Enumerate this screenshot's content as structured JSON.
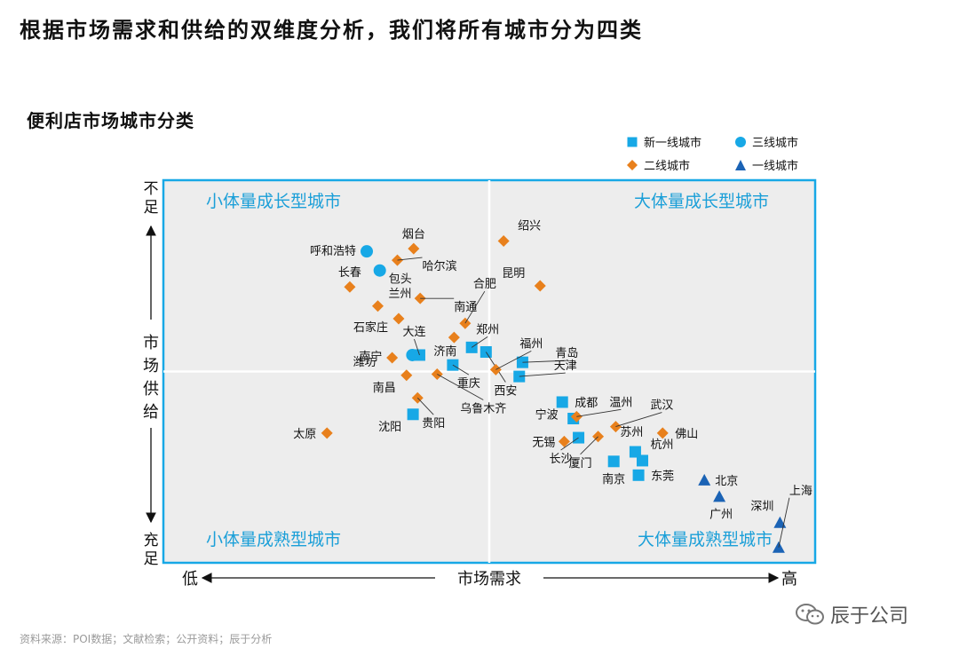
{
  "headline": "根据市场需求和供给的双维度分析，我们将所有城市分为四类",
  "subtitle": "便利店市场城市分类",
  "footnote": "资料来源：POI数据；文献检索；公开资料；辰于分析",
  "brand": {
    "name": "辰于公司",
    "icon": "wechat-icon"
  },
  "colors": {
    "blue": "#17a8e6",
    "orange": "#e8801c",
    "navy": "#1b63b5",
    "quadrant_bg": "#ededed",
    "quadrant_title": "#1b9fd8"
  },
  "legend": [
    {
      "label": "新一线城市",
      "shape": "square",
      "color": "#17a8e6"
    },
    {
      "label": "三线城市",
      "shape": "circle",
      "color": "#17a8e6"
    },
    {
      "label": "二线城市",
      "shape": "diamond",
      "color": "#e8801c"
    },
    {
      "label": "一线城市",
      "shape": "triangle",
      "color": "#1b63b5"
    }
  ],
  "chart_data": {
    "type": "scatter",
    "xlabel": "市场需求",
    "ylabel": "市场供给",
    "x_low_label": "低",
    "x_high_label": "高",
    "y_top_label": "不足",
    "y_bottom_label": "充足",
    "xlim": [
      0,
      100
    ],
    "ylim": [
      0,
      100
    ],
    "grid": false,
    "legend_position": "top-right",
    "quadrants": [
      {
        "label": "小体量成长型城市",
        "position": "top-left"
      },
      {
        "label": "大体量成长型城市",
        "position": "top-right"
      },
      {
        "label": "小体量成熟型城市",
        "position": "bottom-left"
      },
      {
        "label": "大体量成熟型城市",
        "position": "bottom-right"
      }
    ],
    "series": [
      {
        "name": "新一线城市",
        "shape": "square",
        "color": "#17a8e6",
        "points": [
          {
            "label": "大连",
            "x": 39.3,
            "y": 54.3
          },
          {
            "label": "重庆",
            "x": 44.4,
            "y": 51.7
          },
          {
            "label": "郑州",
            "x": 47.3,
            "y": 56.3
          },
          {
            "label": "青岛",
            "x": 55.1,
            "y": 52.4
          },
          {
            "label": "天津",
            "x": 54.6,
            "y": 48.7
          },
          {
            "label": "西安",
            "x": 49.5,
            "y": 55.1
          },
          {
            "label": "沈阳",
            "x": 38.3,
            "y": 38.8
          },
          {
            "label": "成都",
            "x": 61.2,
            "y": 42.0
          },
          {
            "label": "宁波",
            "x": 62.9,
            "y": 37.7
          },
          {
            "label": "长沙",
            "x": 63.7,
            "y": 32.7
          },
          {
            "label": "苏州",
            "x": 72.4,
            "y": 29.0
          },
          {
            "label": "杭州",
            "x": 73.5,
            "y": 26.7
          },
          {
            "label": "南京",
            "x": 69.1,
            "y": 26.5
          },
          {
            "label": "东莞",
            "x": 72.9,
            "y": 22.9
          }
        ]
      },
      {
        "name": "三线城市",
        "shape": "circle",
        "color": "#17a8e6",
        "points": [
          {
            "label": "呼和浩特",
            "x": 31.2,
            "y": 81.4
          },
          {
            "label": "包头",
            "x": 33.2,
            "y": 76.4
          },
          {
            "label": "南宁",
            "x": 38.2,
            "y": 54.3
          }
        ]
      },
      {
        "name": "二线城市",
        "shape": "diamond",
        "color": "#e8801c",
        "points": [
          {
            "label": "烟台",
            "x": 38.4,
            "y": 82.1
          },
          {
            "label": "哈尔滨",
            "x": 35.9,
            "y": 79.1
          },
          {
            "label": "绍兴",
            "x": 52.2,
            "y": 84.1
          },
          {
            "label": "长春",
            "x": 28.6,
            "y": 72.1
          },
          {
            "label": "兰州",
            "x": 32.9,
            "y": 67.1
          },
          {
            "label": "南通",
            "x": 39.4,
            "y": 69.1
          },
          {
            "label": "合肥",
            "x": 46.3,
            "y": 62.6
          },
          {
            "label": "昆明",
            "x": 57.8,
            "y": 72.4
          },
          {
            "label": "济南",
            "x": 44.6,
            "y": 58.9
          },
          {
            "label": "福州",
            "x": 51.0,
            "y": 50.5
          },
          {
            "label": "石家庄",
            "x": 36.1,
            "y": 63.8
          },
          {
            "label": "潍坊",
            "x": 35.1,
            "y": 53.6
          },
          {
            "label": "乌鲁木齐",
            "x": 42.0,
            "y": 49.3
          },
          {
            "label": "南昌",
            "x": 37.3,
            "y": 49.0
          },
          {
            "label": "贵阳",
            "x": 39.0,
            "y": 43.1
          },
          {
            "label": "太原",
            "x": 25.1,
            "y": 33.9
          },
          {
            "label": "温州",
            "x": 63.4,
            "y": 38.2
          },
          {
            "label": "武汉",
            "x": 69.4,
            "y": 35.6
          },
          {
            "label": "无锡",
            "x": 61.5,
            "y": 31.7
          },
          {
            "label": "厦门",
            "x": 66.7,
            "y": 33.0
          },
          {
            "label": "佛山",
            "x": 76.6,
            "y": 33.9
          }
        ]
      },
      {
        "name": "一线城市",
        "shape": "triangle",
        "color": "#1b63b5",
        "points": [
          {
            "label": "北京",
            "x": 83.0,
            "y": 21.6
          },
          {
            "label": "广州",
            "x": 85.3,
            "y": 17.3
          },
          {
            "label": "深圳",
            "x": 94.6,
            "y": 10.5
          },
          {
            "label": "上海",
            "x": 94.4,
            "y": 4.0
          }
        ]
      }
    ]
  }
}
